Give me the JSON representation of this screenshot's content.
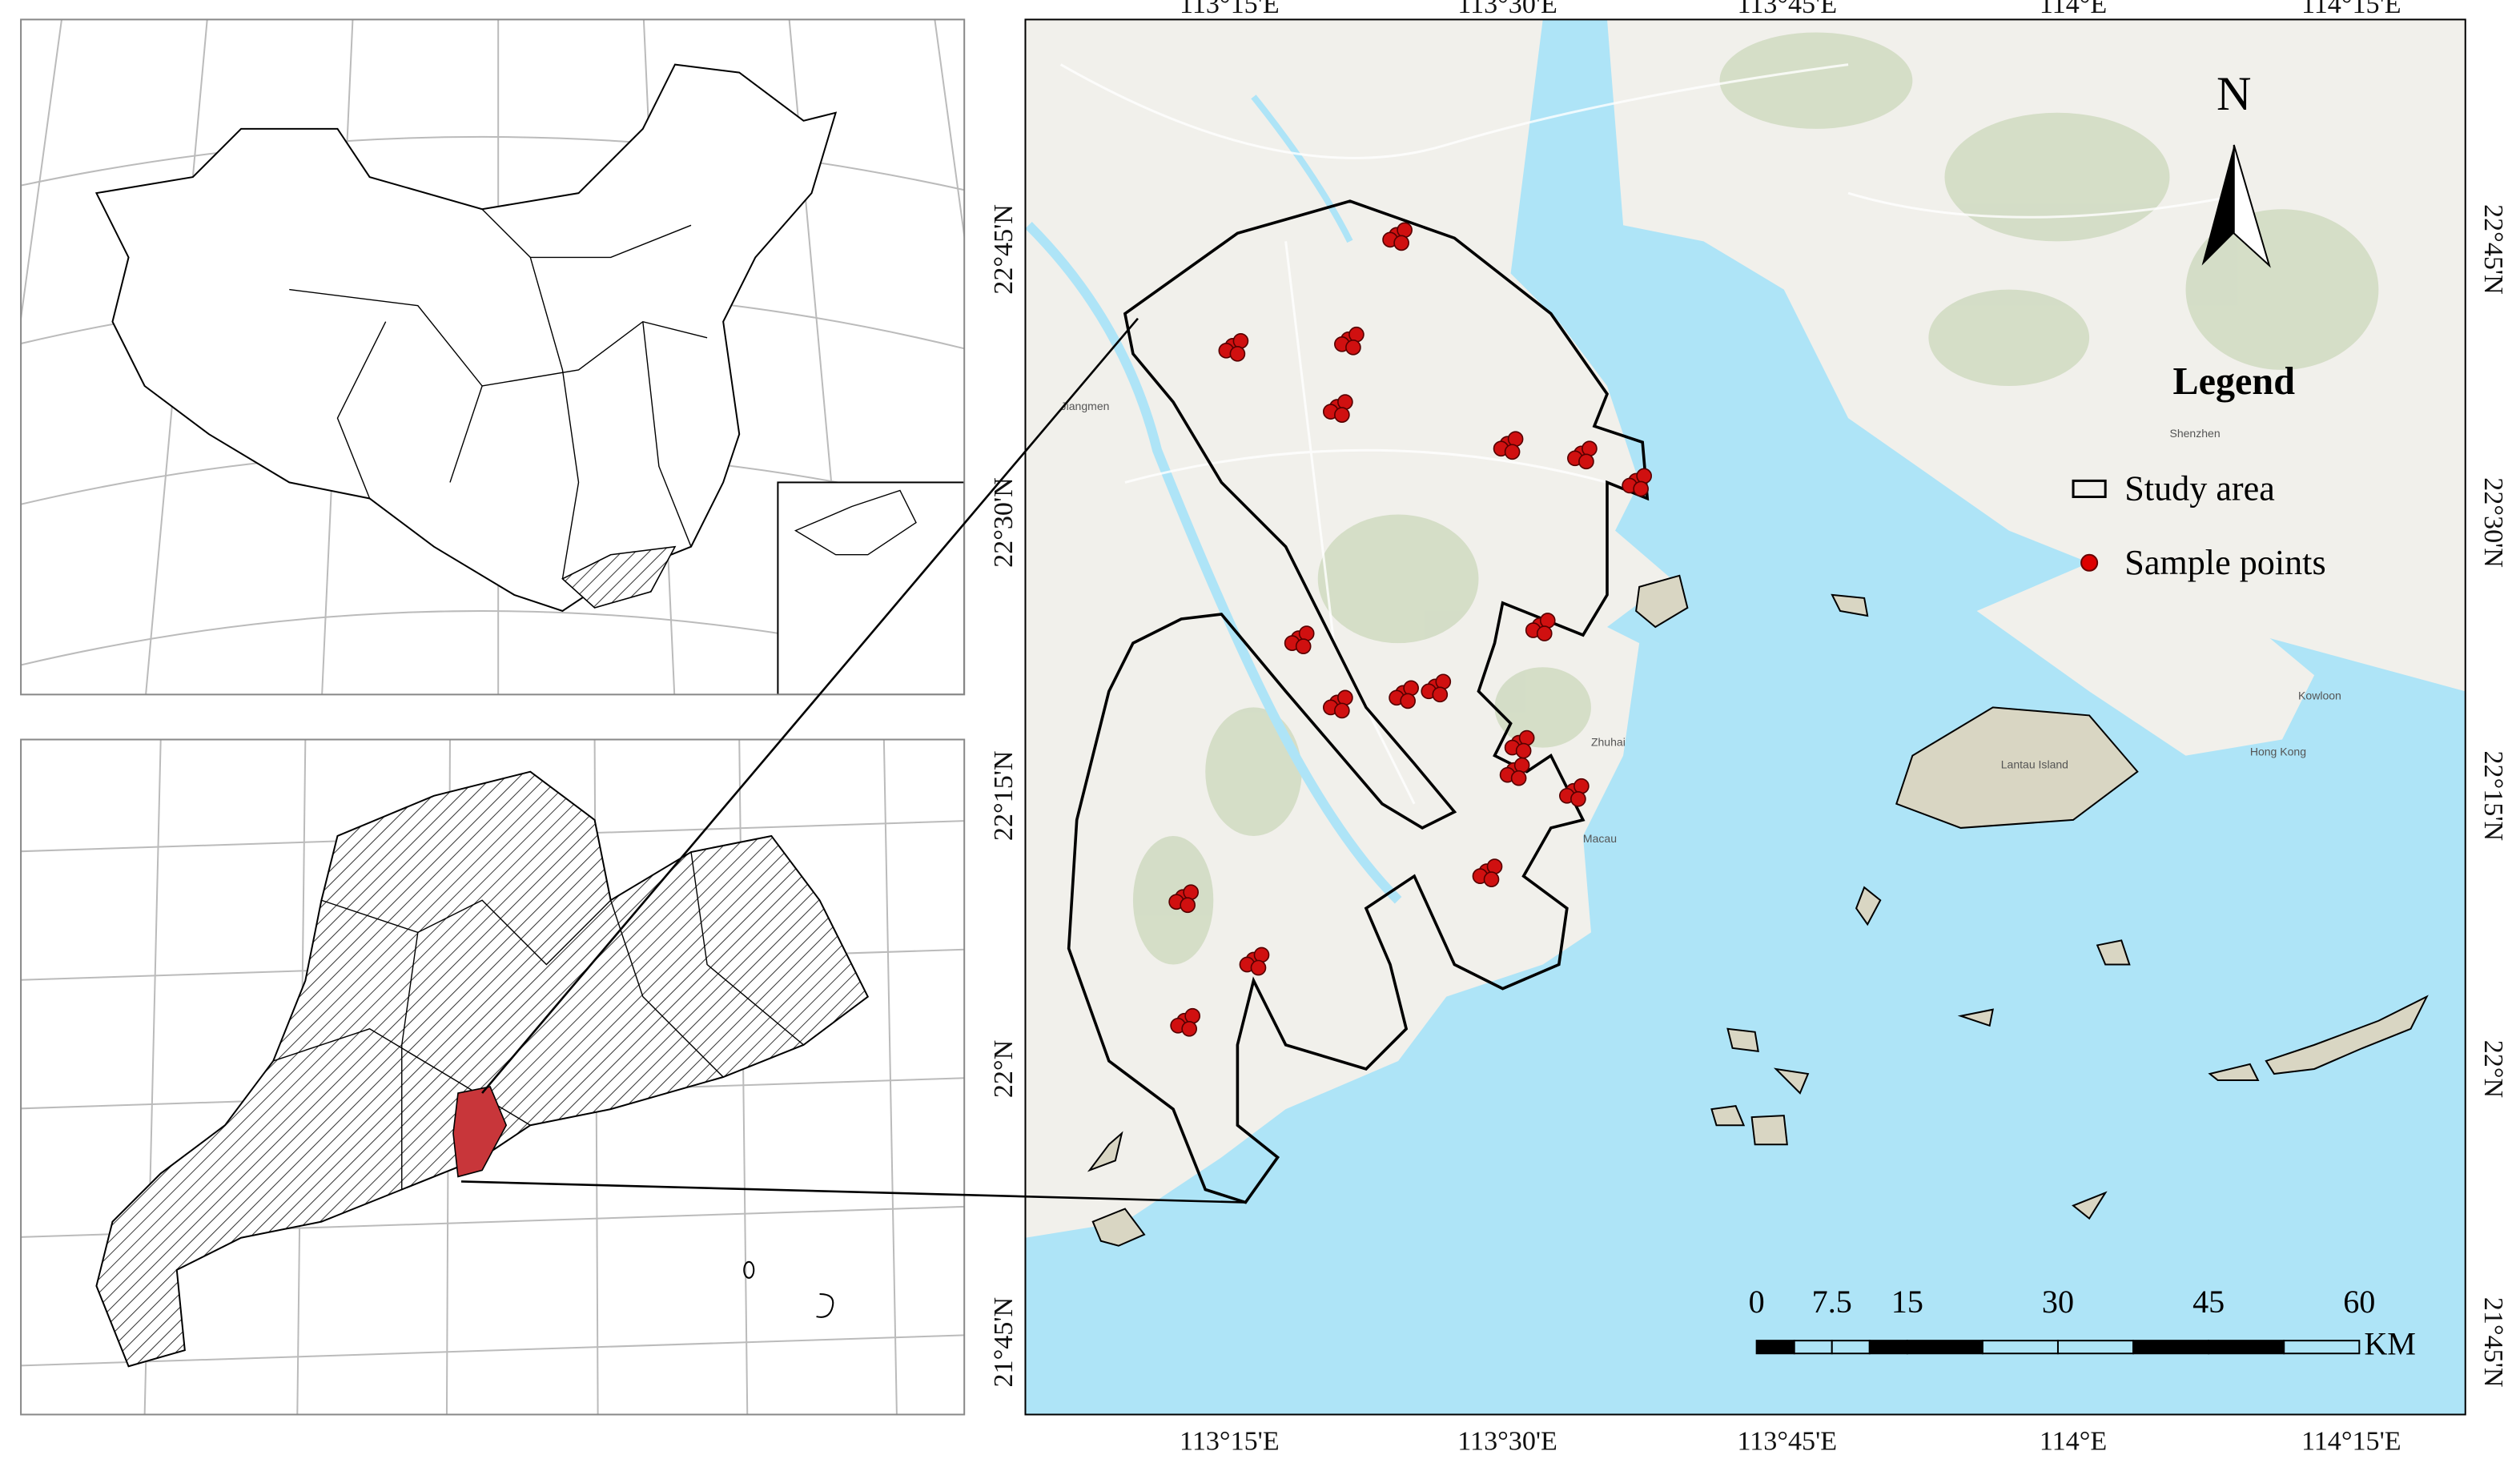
{
  "map": {
    "lon_labels": [
      "113°15'E",
      "113°30'E",
      "113°45'E",
      "114°E",
      "114°15'E"
    ],
    "lat_labels": [
      "22°45'N",
      "22°30'N",
      "22°15'N",
      "22°N",
      "21°45'N"
    ],
    "north": "N",
    "legend": {
      "title": "Legend",
      "items": [
        "Study area",
        "Sample points"
      ]
    },
    "scale_bar": {
      "ticks": [
        0,
        7.5,
        15,
        30,
        45,
        60
      ],
      "unit": "KM"
    },
    "place_labels": [
      "Jiangmen",
      "Shenzhen",
      "Macau",
      "Zhuhai",
      "Lantau Island",
      "Kowloon",
      "Hong Kong"
    ]
  }
}
